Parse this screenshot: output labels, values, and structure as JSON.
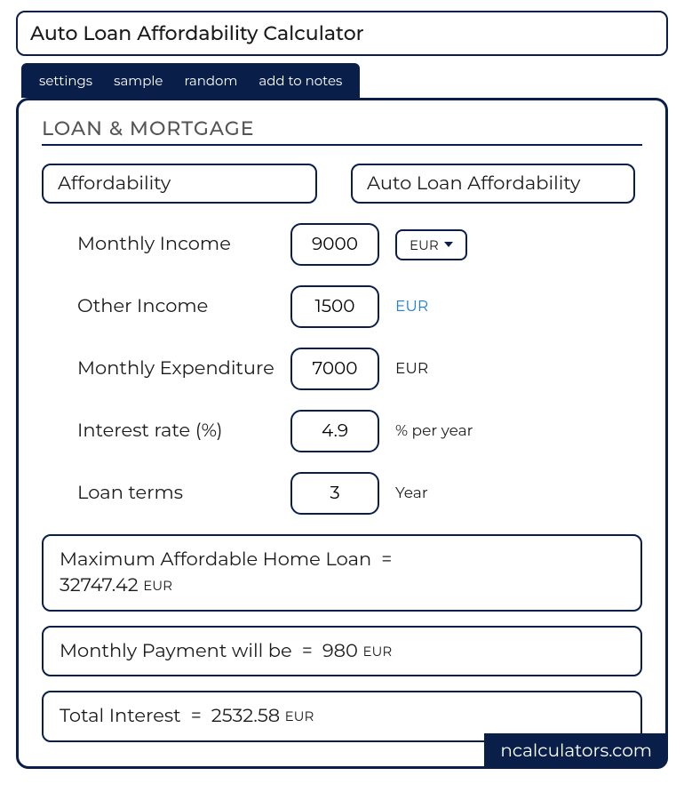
{
  "title": "Auto Loan Affordability Calculator",
  "tabs": {
    "settings": "settings",
    "sample": "sample",
    "random": "random",
    "add_to_notes": "add to notes"
  },
  "section_heading": "LOAN & MORTGAGE",
  "pills": {
    "left": "Affordability",
    "right": "Auto Loan Affordability"
  },
  "fields": {
    "monthly_income": {
      "label": "Monthly Income",
      "value": "9000",
      "unit": "EUR"
    },
    "other_income": {
      "label": "Other Income",
      "value": "1500",
      "unit": "EUR"
    },
    "monthly_expenditure": {
      "label": "Monthly Expenditure",
      "value": "7000",
      "unit": "EUR"
    },
    "interest_rate": {
      "label": "Interest rate (%)",
      "value": "4.9",
      "unit": "% per year"
    },
    "loan_terms": {
      "label": "Loan terms",
      "value": "3",
      "unit": "Year"
    }
  },
  "currency_selector": "EUR",
  "results": {
    "max_loan": {
      "label": "Maximum Affordable Home Loan",
      "value": "32747.42",
      "currency": "EUR"
    },
    "monthly_payment": {
      "label": "Monthly Payment will be",
      "value": "980",
      "currency": "EUR"
    },
    "total_interest": {
      "label": "Total Interest",
      "value": "2532.58",
      "currency": "EUR"
    }
  },
  "footer_brand": "ncalculators.com",
  "colors": {
    "primary": "#0a1e4a",
    "background": "#ffffff",
    "link": "#1e7fd6",
    "heading_text": "#555555"
  }
}
